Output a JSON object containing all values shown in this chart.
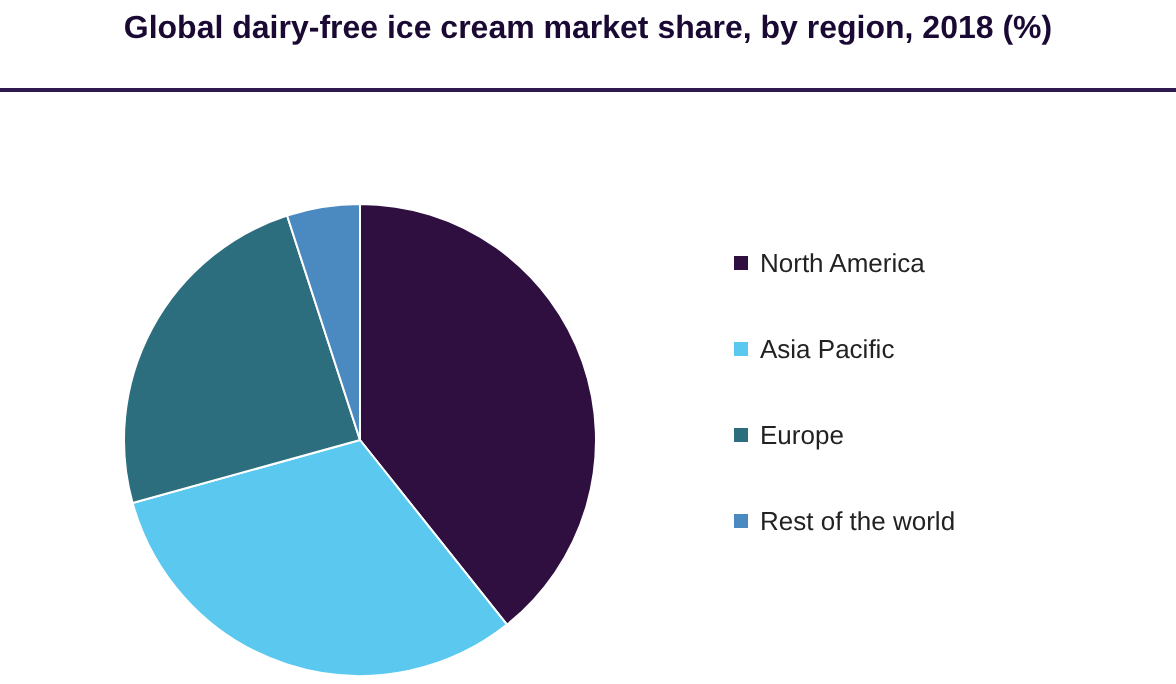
{
  "chart_data": {
    "type": "pie",
    "title": "Global dairy-free ice cream market share, by region, 2018 (%)",
    "categories": [
      "North America",
      "Asia Pacific",
      "Europe",
      "Rest of the world"
    ],
    "values": [
      39.3,
      31.4,
      24.3,
      5.0
    ],
    "colors": [
      "#2e0f3f",
      "#5bc8f0",
      "#2c6e7e",
      "#4a8ac0"
    ],
    "legend": "right"
  }
}
